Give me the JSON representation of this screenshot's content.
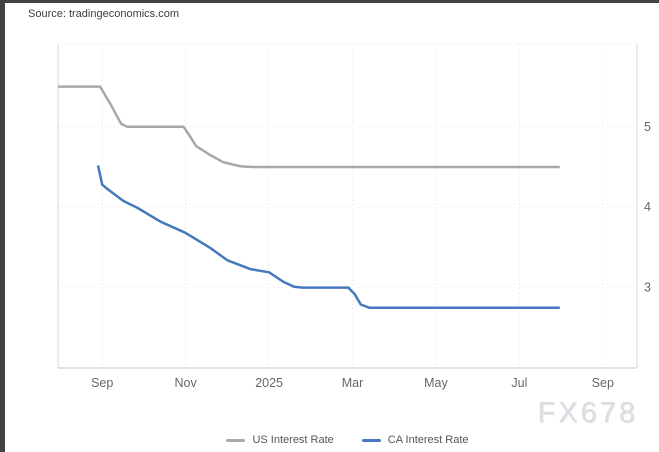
{
  "header": {
    "source": "Source: tradingeconomics.com"
  },
  "watermark": {
    "text": "FX678"
  },
  "colors": {
    "frame": "#424242",
    "grid": "#e4e4e4",
    "border": "#d9d9d9",
    "axis": "#c4c4c4",
    "tick_text": "#666666",
    "legend_text": "#555555",
    "source_text": "#3d3d3d",
    "watermark": "#d9dee3",
    "us_line": "#a8a8a8",
    "ca_line": "#4678bd"
  },
  "chart_data": {
    "type": "line",
    "title": "",
    "xlabel": "",
    "ylabel": "",
    "x_unit": "months since Sep 1 2024",
    "tlim": [
      -1.06,
      12.82
    ],
    "ylim": [
      2.0,
      6.03
    ],
    "grid": true,
    "legend_position": "bottom-center",
    "x_ticks": [
      {
        "t": 0,
        "label": "Sep"
      },
      {
        "t": 2,
        "label": "Nov"
      },
      {
        "t": 4,
        "label": "2025"
      },
      {
        "t": 6,
        "label": "Mar"
      },
      {
        "t": 8,
        "label": "May"
      },
      {
        "t": 10,
        "label": "Jul"
      },
      {
        "t": 12,
        "label": "Sep"
      }
    ],
    "y_ticks": [
      3,
      4,
      5
    ],
    "series": [
      {
        "name": "US Interest Rate",
        "color": "#a8a8a8",
        "width": 2.5,
        "levels": [
          5.5,
          5.0,
          4.75,
          4.5
        ],
        "points": [
          [
            -1.06,
            5.5
          ],
          [
            -0.05,
            5.5
          ],
          [
            0.2,
            5.28
          ],
          [
            0.45,
            5.04
          ],
          [
            0.6,
            5.0
          ],
          [
            1.95,
            5.0
          ],
          [
            2.08,
            4.9
          ],
          [
            2.25,
            4.76
          ],
          [
            2.55,
            4.66
          ],
          [
            2.9,
            4.56
          ],
          [
            3.3,
            4.51
          ],
          [
            3.6,
            4.5
          ],
          [
            10.97,
            4.5
          ]
        ]
      },
      {
        "name": "CA Interest Rate",
        "color": "#4678bd",
        "width": 2.5,
        "levels": [
          4.5,
          4.25,
          3.75,
          3.25,
          3.0,
          2.75
        ],
        "points": [
          [
            -0.1,
            4.52
          ],
          [
            0.0,
            4.28
          ],
          [
            0.14,
            4.22
          ],
          [
            0.5,
            4.08
          ],
          [
            0.85,
            3.99
          ],
          [
            1.4,
            3.82
          ],
          [
            2.0,
            3.68
          ],
          [
            2.6,
            3.49
          ],
          [
            3.0,
            3.34
          ],
          [
            3.55,
            3.23
          ],
          [
            4.0,
            3.19
          ],
          [
            4.35,
            3.07
          ],
          [
            4.6,
            3.01
          ],
          [
            4.8,
            3.0
          ],
          [
            5.9,
            3.0
          ],
          [
            6.05,
            2.92
          ],
          [
            6.2,
            2.79
          ],
          [
            6.4,
            2.75
          ],
          [
            10.97,
            2.75
          ]
        ]
      }
    ]
  }
}
